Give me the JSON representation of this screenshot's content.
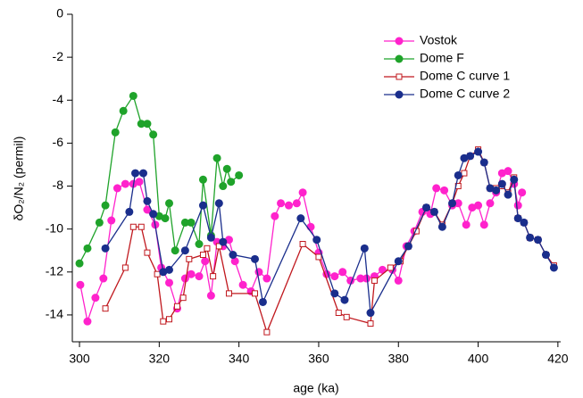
{
  "chart_data": {
    "type": "line",
    "xlabel": "age (ka)",
    "ylabel": "δO₂/N₂ (permil)",
    "xlim": [
      298.2,
      420.7
    ],
    "ylim": [
      -15.25,
      0
    ],
    "xticks": [
      300,
      320,
      340,
      360,
      380,
      400,
      420
    ],
    "yticks": [
      0,
      -2,
      -4,
      -6,
      -8,
      -10,
      -12,
      -14
    ],
    "legend": "upper right",
    "series": [
      {
        "name": "Vostok",
        "color": "#ff22cc",
        "marker": "circle",
        "x": [
          300.2,
          302,
          304,
          306,
          308,
          309.5,
          311.5,
          313.5,
          315,
          317,
          319,
          320.5,
          322.5,
          324.5,
          326.5,
          328,
          330,
          331.5,
          333,
          334.5,
          336,
          337.5,
          339,
          341,
          343,
          345,
          347,
          349,
          350.5,
          352.5,
          354.5,
          356,
          358,
          360,
          362,
          364,
          366,
          368,
          370.5,
          372,
          374,
          376,
          378.5,
          380,
          382,
          384,
          386,
          388,
          389.5,
          391.5,
          393.5,
          395,
          397,
          398.5,
          400,
          401.5,
          403,
          404.5,
          406,
          407.5,
          409,
          410,
          411
        ],
        "values": [
          -12.6,
          -14.3,
          -13.2,
          -12.3,
          -9.6,
          -8.1,
          -7.9,
          -7.9,
          -7.8,
          -9.1,
          -9.8,
          -11.8,
          -12.5,
          -13.7,
          -12.3,
          -12.1,
          -12.2,
          -11.5,
          -13.1,
          -10.6,
          -10.8,
          -10.5,
          -11.5,
          -12.6,
          -12.9,
          -12.0,
          -12.3,
          -9.4,
          -8.8,
          -8.9,
          -8.8,
          -8.3,
          -9.9,
          -11.1,
          -12.1,
          -12.2,
          -12.0,
          -12.4,
          -12.3,
          -12.3,
          -12.2,
          -11.9,
          -11.9,
          -12.4,
          -10.8,
          -10.1,
          -9.2,
          -9.3,
          -8.1,
          -8.2,
          -8.9,
          -8.8,
          -9.8,
          -9.0,
          -8.9,
          -9.8,
          -8.8,
          -8.3,
          -7.4,
          -7.3,
          -7.9,
          -8.9,
          -8.3
        ]
      },
      {
        "name": "Dome F",
        "color": "#1fa32a",
        "marker": "circle",
        "x": [
          300,
          302,
          305,
          306.5,
          309,
          311,
          313.5,
          315.5,
          317,
          318.5,
          320,
          321.5,
          322.5,
          324,
          326.5,
          328,
          330,
          331,
          333,
          334.5,
          336,
          337,
          338,
          340
        ],
        "values": [
          -11.6,
          -10.9,
          -9.7,
          -8.9,
          -5.5,
          -4.5,
          -3.8,
          -5.1,
          -5.1,
          -5.6,
          -9.4,
          -9.5,
          -8.8,
          -11.0,
          -9.7,
          -9.7,
          -10.7,
          -7.7,
          -10.3,
          -6.7,
          -8.0,
          -7.2,
          -7.8,
          -7.5
        ]
      },
      {
        "name": "Dome C curve 1",
        "color": "#c0181e",
        "marker": "square",
        "x": [
          306.5,
          311.5,
          313.5,
          315.5,
          317,
          319.5,
          321,
          322.5,
          324.5,
          326,
          327.5,
          331,
          332,
          333.5,
          335,
          337.5,
          344,
          347,
          356,
          360,
          365,
          367,
          373,
          374,
          378,
          380.5,
          382.5,
          384.5,
          387,
          389,
          391,
          393.5,
          395,
          396.5,
          398,
          400,
          401.5,
          403,
          404.5,
          406,
          407.5,
          409,
          410,
          411.5,
          413,
          415,
          417,
          419
        ],
        "values": [
          -13.7,
          -11.8,
          -9.9,
          -9.9,
          -11.1,
          -12.1,
          -14.3,
          -14.2,
          -13.6,
          -13.2,
          -11.4,
          -11.2,
          -10.9,
          -12.2,
          -10.8,
          -13.0,
          -13.0,
          -14.8,
          -10.7,
          -11.3,
          -13.9,
          -14.1,
          -14.4,
          -12.4,
          -11.8,
          -11.5,
          -10.8,
          -10.1,
          -9.0,
          -9.2,
          -9.8,
          -8.8,
          -8.0,
          -7.4,
          -6.6,
          -6.3,
          -6.9,
          -8.1,
          -8.1,
          -8.0,
          -8.3,
          -7.6,
          -9.5,
          -9.7,
          -10.4,
          -10.5,
          -11.2,
          -11.7
        ]
      },
      {
        "name": "Dome C curve 2",
        "color": "#1a2e8c",
        "marker": "circle",
        "x": [
          306.5,
          312.5,
          314,
          316,
          317,
          318.5,
          321,
          322.5,
          326.5,
          331,
          333,
          335,
          336,
          338.5,
          344,
          346,
          355.5,
          359.5,
          364,
          366.5,
          371.5,
          373,
          380,
          382.5,
          387,
          389,
          391,
          393.5,
          395,
          396.5,
          398,
          400,
          401.5,
          403,
          404.5,
          406,
          407.5,
          409,
          410,
          411.5,
          413,
          415,
          417,
          419
        ],
        "values": [
          -10.9,
          -9.2,
          -7.4,
          -7.4,
          -8.7,
          -9.3,
          -12.0,
          -11.9,
          -11.0,
          -8.9,
          -10.4,
          -8.8,
          -10.6,
          -11.2,
          -11.4,
          -13.4,
          -9.5,
          -10.5,
          -13.0,
          -13.3,
          -10.9,
          -13.9,
          -11.5,
          -10.8,
          -9.0,
          -9.2,
          -9.9,
          -8.8,
          -7.5,
          -6.7,
          -6.6,
          -6.4,
          -6.9,
          -8.1,
          -8.2,
          -7.9,
          -8.4,
          -7.7,
          -9.5,
          -9.7,
          -10.4,
          -10.5,
          -11.2,
          -11.8
        ]
      }
    ]
  }
}
